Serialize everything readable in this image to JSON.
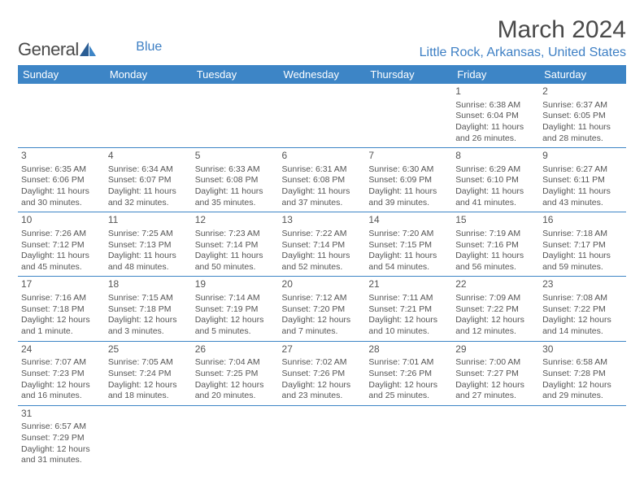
{
  "logo": {
    "general": "Genera",
    "a_with_sail": "l",
    "blue": "Blue"
  },
  "header": {
    "month_title": "March 2024",
    "location": "Little Rock, Arkansas, United States"
  },
  "colors": {
    "header_bg": "#3d85c6",
    "accent": "#3d7fc4",
    "text": "#555",
    "page_bg": "#ffffff"
  },
  "day_headers": [
    "Sunday",
    "Monday",
    "Tuesday",
    "Wednesday",
    "Thursday",
    "Friday",
    "Saturday"
  ],
  "weeks": [
    [
      null,
      null,
      null,
      null,
      null,
      {
        "n": "1",
        "sr": "Sunrise: 6:38 AM",
        "ss": "Sunset: 6:04 PM",
        "d1": "Daylight: 11 hours",
        "d2": "and 26 minutes."
      },
      {
        "n": "2",
        "sr": "Sunrise: 6:37 AM",
        "ss": "Sunset: 6:05 PM",
        "d1": "Daylight: 11 hours",
        "d2": "and 28 minutes."
      }
    ],
    [
      {
        "n": "3",
        "sr": "Sunrise: 6:35 AM",
        "ss": "Sunset: 6:06 PM",
        "d1": "Daylight: 11 hours",
        "d2": "and 30 minutes."
      },
      {
        "n": "4",
        "sr": "Sunrise: 6:34 AM",
        "ss": "Sunset: 6:07 PM",
        "d1": "Daylight: 11 hours",
        "d2": "and 32 minutes."
      },
      {
        "n": "5",
        "sr": "Sunrise: 6:33 AM",
        "ss": "Sunset: 6:08 PM",
        "d1": "Daylight: 11 hours",
        "d2": "and 35 minutes."
      },
      {
        "n": "6",
        "sr": "Sunrise: 6:31 AM",
        "ss": "Sunset: 6:08 PM",
        "d1": "Daylight: 11 hours",
        "d2": "and 37 minutes."
      },
      {
        "n": "7",
        "sr": "Sunrise: 6:30 AM",
        "ss": "Sunset: 6:09 PM",
        "d1": "Daylight: 11 hours",
        "d2": "and 39 minutes."
      },
      {
        "n": "8",
        "sr": "Sunrise: 6:29 AM",
        "ss": "Sunset: 6:10 PM",
        "d1": "Daylight: 11 hours",
        "d2": "and 41 minutes."
      },
      {
        "n": "9",
        "sr": "Sunrise: 6:27 AM",
        "ss": "Sunset: 6:11 PM",
        "d1": "Daylight: 11 hours",
        "d2": "and 43 minutes."
      }
    ],
    [
      {
        "n": "10",
        "sr": "Sunrise: 7:26 AM",
        "ss": "Sunset: 7:12 PM",
        "d1": "Daylight: 11 hours",
        "d2": "and 45 minutes."
      },
      {
        "n": "11",
        "sr": "Sunrise: 7:25 AM",
        "ss": "Sunset: 7:13 PM",
        "d1": "Daylight: 11 hours",
        "d2": "and 48 minutes."
      },
      {
        "n": "12",
        "sr": "Sunrise: 7:23 AM",
        "ss": "Sunset: 7:14 PM",
        "d1": "Daylight: 11 hours",
        "d2": "and 50 minutes."
      },
      {
        "n": "13",
        "sr": "Sunrise: 7:22 AM",
        "ss": "Sunset: 7:14 PM",
        "d1": "Daylight: 11 hours",
        "d2": "and 52 minutes."
      },
      {
        "n": "14",
        "sr": "Sunrise: 7:20 AM",
        "ss": "Sunset: 7:15 PM",
        "d1": "Daylight: 11 hours",
        "d2": "and 54 minutes."
      },
      {
        "n": "15",
        "sr": "Sunrise: 7:19 AM",
        "ss": "Sunset: 7:16 PM",
        "d1": "Daylight: 11 hours",
        "d2": "and 56 minutes."
      },
      {
        "n": "16",
        "sr": "Sunrise: 7:18 AM",
        "ss": "Sunset: 7:17 PM",
        "d1": "Daylight: 11 hours",
        "d2": "and 59 minutes."
      }
    ],
    [
      {
        "n": "17",
        "sr": "Sunrise: 7:16 AM",
        "ss": "Sunset: 7:18 PM",
        "d1": "Daylight: 12 hours",
        "d2": "and 1 minute."
      },
      {
        "n": "18",
        "sr": "Sunrise: 7:15 AM",
        "ss": "Sunset: 7:18 PM",
        "d1": "Daylight: 12 hours",
        "d2": "and 3 minutes."
      },
      {
        "n": "19",
        "sr": "Sunrise: 7:14 AM",
        "ss": "Sunset: 7:19 PM",
        "d1": "Daylight: 12 hours",
        "d2": "and 5 minutes."
      },
      {
        "n": "20",
        "sr": "Sunrise: 7:12 AM",
        "ss": "Sunset: 7:20 PM",
        "d1": "Daylight: 12 hours",
        "d2": "and 7 minutes."
      },
      {
        "n": "21",
        "sr": "Sunrise: 7:11 AM",
        "ss": "Sunset: 7:21 PM",
        "d1": "Daylight: 12 hours",
        "d2": "and 10 minutes."
      },
      {
        "n": "22",
        "sr": "Sunrise: 7:09 AM",
        "ss": "Sunset: 7:22 PM",
        "d1": "Daylight: 12 hours",
        "d2": "and 12 minutes."
      },
      {
        "n": "23",
        "sr": "Sunrise: 7:08 AM",
        "ss": "Sunset: 7:22 PM",
        "d1": "Daylight: 12 hours",
        "d2": "and 14 minutes."
      }
    ],
    [
      {
        "n": "24",
        "sr": "Sunrise: 7:07 AM",
        "ss": "Sunset: 7:23 PM",
        "d1": "Daylight: 12 hours",
        "d2": "and 16 minutes."
      },
      {
        "n": "25",
        "sr": "Sunrise: 7:05 AM",
        "ss": "Sunset: 7:24 PM",
        "d1": "Daylight: 12 hours",
        "d2": "and 18 minutes."
      },
      {
        "n": "26",
        "sr": "Sunrise: 7:04 AM",
        "ss": "Sunset: 7:25 PM",
        "d1": "Daylight: 12 hours",
        "d2": "and 20 minutes."
      },
      {
        "n": "27",
        "sr": "Sunrise: 7:02 AM",
        "ss": "Sunset: 7:26 PM",
        "d1": "Daylight: 12 hours",
        "d2": "and 23 minutes."
      },
      {
        "n": "28",
        "sr": "Sunrise: 7:01 AM",
        "ss": "Sunset: 7:26 PM",
        "d1": "Daylight: 12 hours",
        "d2": "and 25 minutes."
      },
      {
        "n": "29",
        "sr": "Sunrise: 7:00 AM",
        "ss": "Sunset: 7:27 PM",
        "d1": "Daylight: 12 hours",
        "d2": "and 27 minutes."
      },
      {
        "n": "30",
        "sr": "Sunrise: 6:58 AM",
        "ss": "Sunset: 7:28 PM",
        "d1": "Daylight: 12 hours",
        "d2": "and 29 minutes."
      }
    ],
    [
      {
        "n": "31",
        "sr": "Sunrise: 6:57 AM",
        "ss": "Sunset: 7:29 PM",
        "d1": "Daylight: 12 hours",
        "d2": "and 31 minutes."
      },
      null,
      null,
      null,
      null,
      null,
      null
    ]
  ]
}
